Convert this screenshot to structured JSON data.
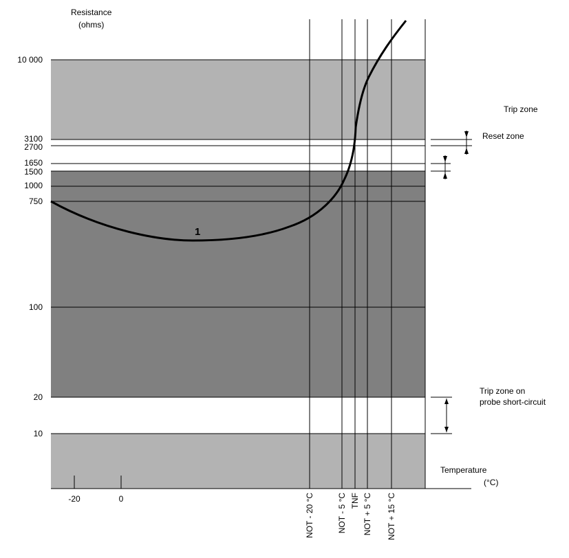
{
  "y_axis": {
    "title_line1": "Resistance",
    "title_line2": "(ohms)",
    "tick_labels": [
      "10 000",
      "3100",
      "2700",
      "1650",
      "1500",
      "1000",
      "750",
      "100",
      "20",
      "10"
    ]
  },
  "x_axis": {
    "title_line1": "Temperature",
    "title_line2": "(°C)",
    "tick_labels": [
      "-20",
      "0"
    ],
    "vertical_labels": [
      "NOT - 20 °C",
      "NOT - 5 °C",
      "TNF",
      "NOT + 5 °C",
      "NOT + 15 °C"
    ]
  },
  "zones": {
    "trip": "Trip zone",
    "reset": "Reset zone",
    "short_line1": "Trip zone on",
    "short_line2": "probe short-circuit"
  },
  "curve_label": "1",
  "colors": {
    "light_zone": "#b3b3b3",
    "dark_zone": "#808080",
    "lines": "#000000",
    "background": "#ffffff"
  }
}
